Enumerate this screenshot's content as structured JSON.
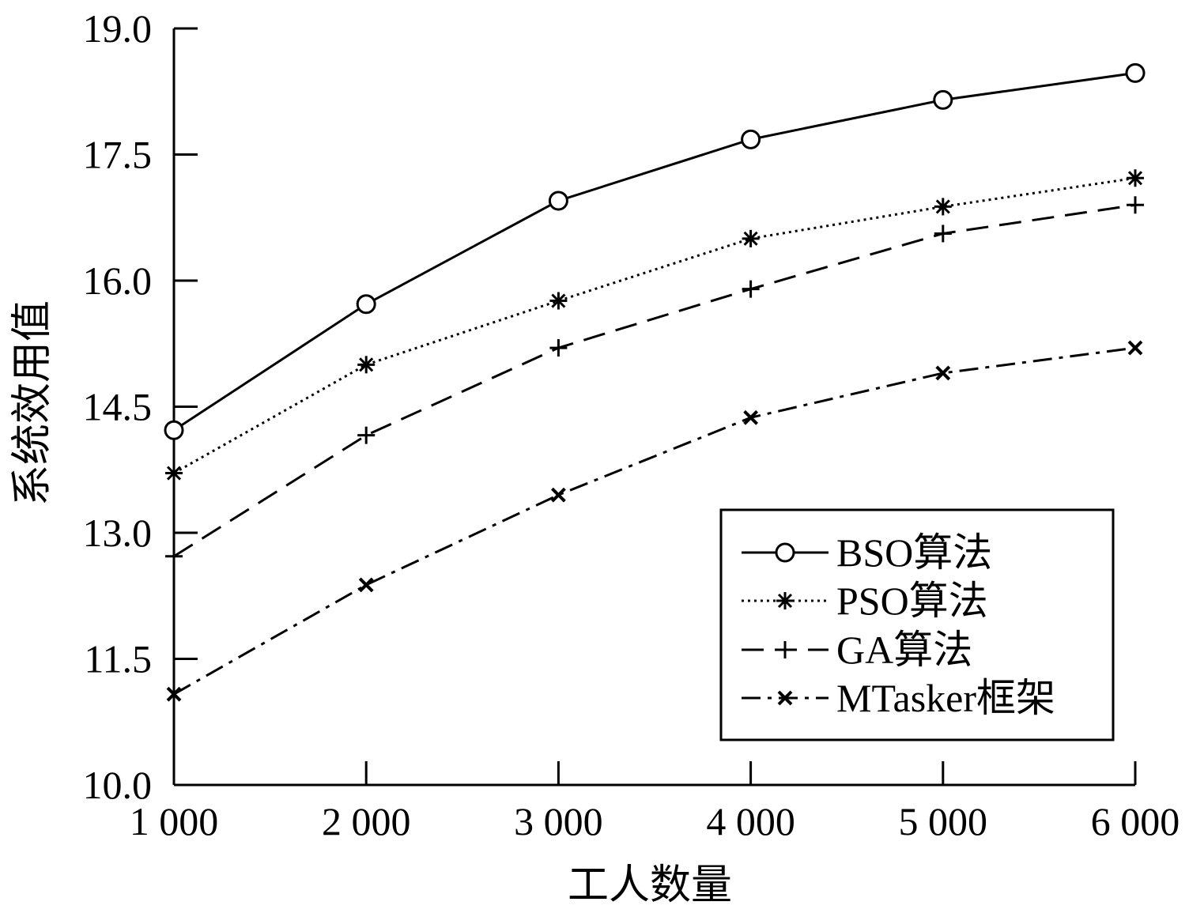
{
  "chart_data": {
    "type": "line",
    "title": "",
    "xlabel": "工人数量",
    "ylabel": "系统效用值",
    "x": [
      1000,
      2000,
      3000,
      4000,
      5000,
      6000
    ],
    "x_tick_labels": [
      "1 000",
      "2 000",
      "3 000",
      "4 000",
      "5 000",
      "6 000"
    ],
    "y_ticks": [
      10.0,
      11.5,
      13.0,
      14.5,
      16.0,
      17.5,
      19.0
    ],
    "y_tick_labels": [
      "10.0",
      "11.5",
      "13.0",
      "14.5",
      "16.0",
      "17.5",
      "19.0"
    ],
    "xlim": [
      1000,
      6000
    ],
    "ylim": [
      10.0,
      19.0
    ],
    "grid": false,
    "legend_position": "bottom-right",
    "series": [
      {
        "name": "BSO算法",
        "values": [
          14.22,
          15.72,
          16.95,
          17.68,
          18.15,
          18.47
        ],
        "marker": "circle",
        "line_style": "solid"
      },
      {
        "name": "PSO算法",
        "values": [
          13.71,
          15.0,
          15.76,
          16.5,
          16.88,
          17.22
        ],
        "marker": "asterisk",
        "line_style": "dotted"
      },
      {
        "name": "GA算法",
        "values": [
          12.72,
          14.16,
          15.2,
          15.9,
          16.56,
          16.9
        ],
        "marker": "plus",
        "line_style": "dashed"
      },
      {
        "name": "MTasker框架",
        "values": [
          11.08,
          12.38,
          13.45,
          14.37,
          14.9,
          15.2
        ],
        "marker": "x",
        "line_style": "dashdot"
      }
    ]
  }
}
